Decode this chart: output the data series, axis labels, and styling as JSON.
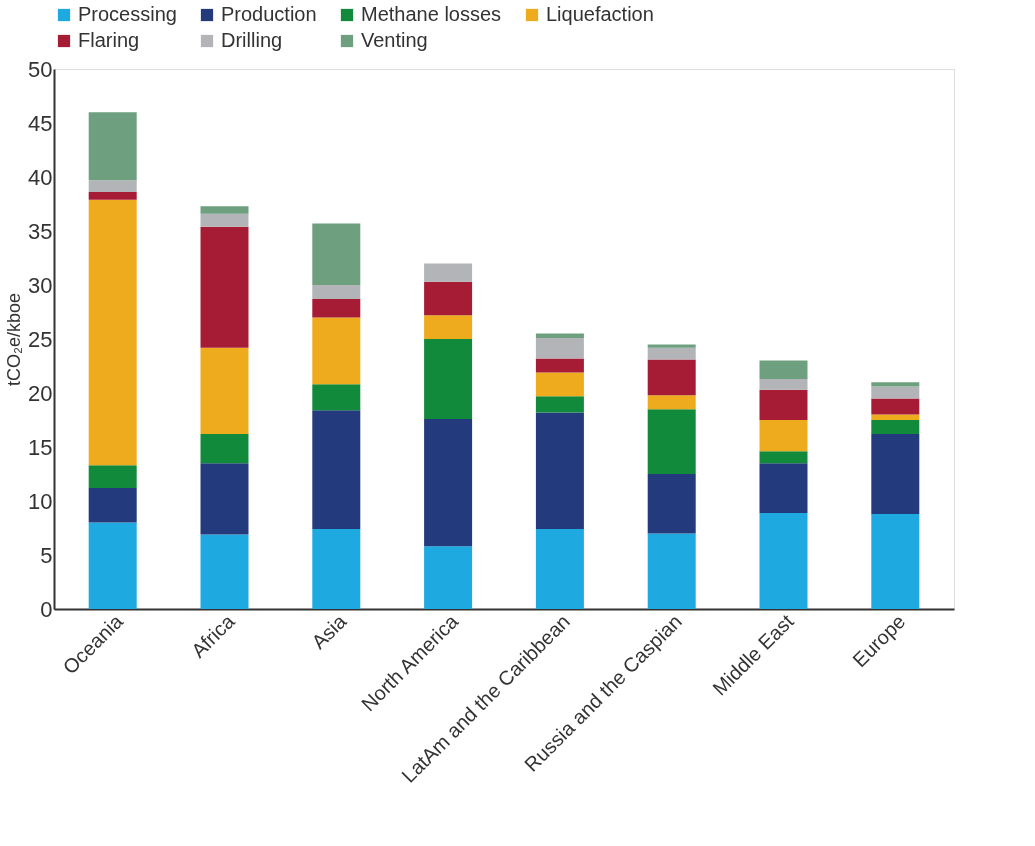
{
  "chart_data": {
    "type": "bar",
    "stacked": true,
    "ylabel": "tCO₂e/kboe",
    "categories": [
      "Oceania",
      "Africa",
      "Asia",
      "North America",
      "LatAm and the Caribbean",
      "Russia and the Caspian",
      "Middle East",
      "Europe"
    ],
    "series": [
      {
        "name": "Processing",
        "color": "#1fa9e1",
        "values": [
          8.0,
          6.9,
          7.4,
          5.8,
          7.4,
          7.0,
          8.9,
          8.8
        ]
      },
      {
        "name": "Production",
        "color": "#233a7c",
        "values": [
          3.2,
          6.6,
          11.0,
          11.8,
          10.8,
          5.5,
          4.6,
          7.4
        ]
      },
      {
        "name": "Methane losses",
        "color": "#128a3c",
        "values": [
          2.1,
          2.7,
          2.4,
          7.4,
          1.5,
          6.0,
          1.1,
          1.3
        ]
      },
      {
        "name": "Liquefaction",
        "color": "#eeab1d",
        "values": [
          24.6,
          8.0,
          6.2,
          2.2,
          2.2,
          1.3,
          2.9,
          0.5
        ]
      },
      {
        "name": "Flaring",
        "color": "#a51c34",
        "values": [
          0.7,
          11.2,
          1.7,
          3.1,
          1.3,
          3.3,
          2.8,
          1.5
        ]
      },
      {
        "name": "Drilling",
        "color": "#b3b4b8",
        "values": [
          1.1,
          1.2,
          1.3,
          1.7,
          1.9,
          1.1,
          1.0,
          1.1
        ]
      },
      {
        "name": "Venting",
        "color": "#6e9f7f",
        "values": [
          6.3,
          0.7,
          5.7,
          0,
          0.4,
          0.3,
          1.7,
          0.4
        ]
      }
    ],
    "ylim": [
      0,
      50
    ],
    "yticks": [
      0,
      5,
      10,
      15,
      20,
      25,
      30,
      35,
      40,
      45,
      50
    ],
    "grid": false,
    "legend": "top"
  }
}
